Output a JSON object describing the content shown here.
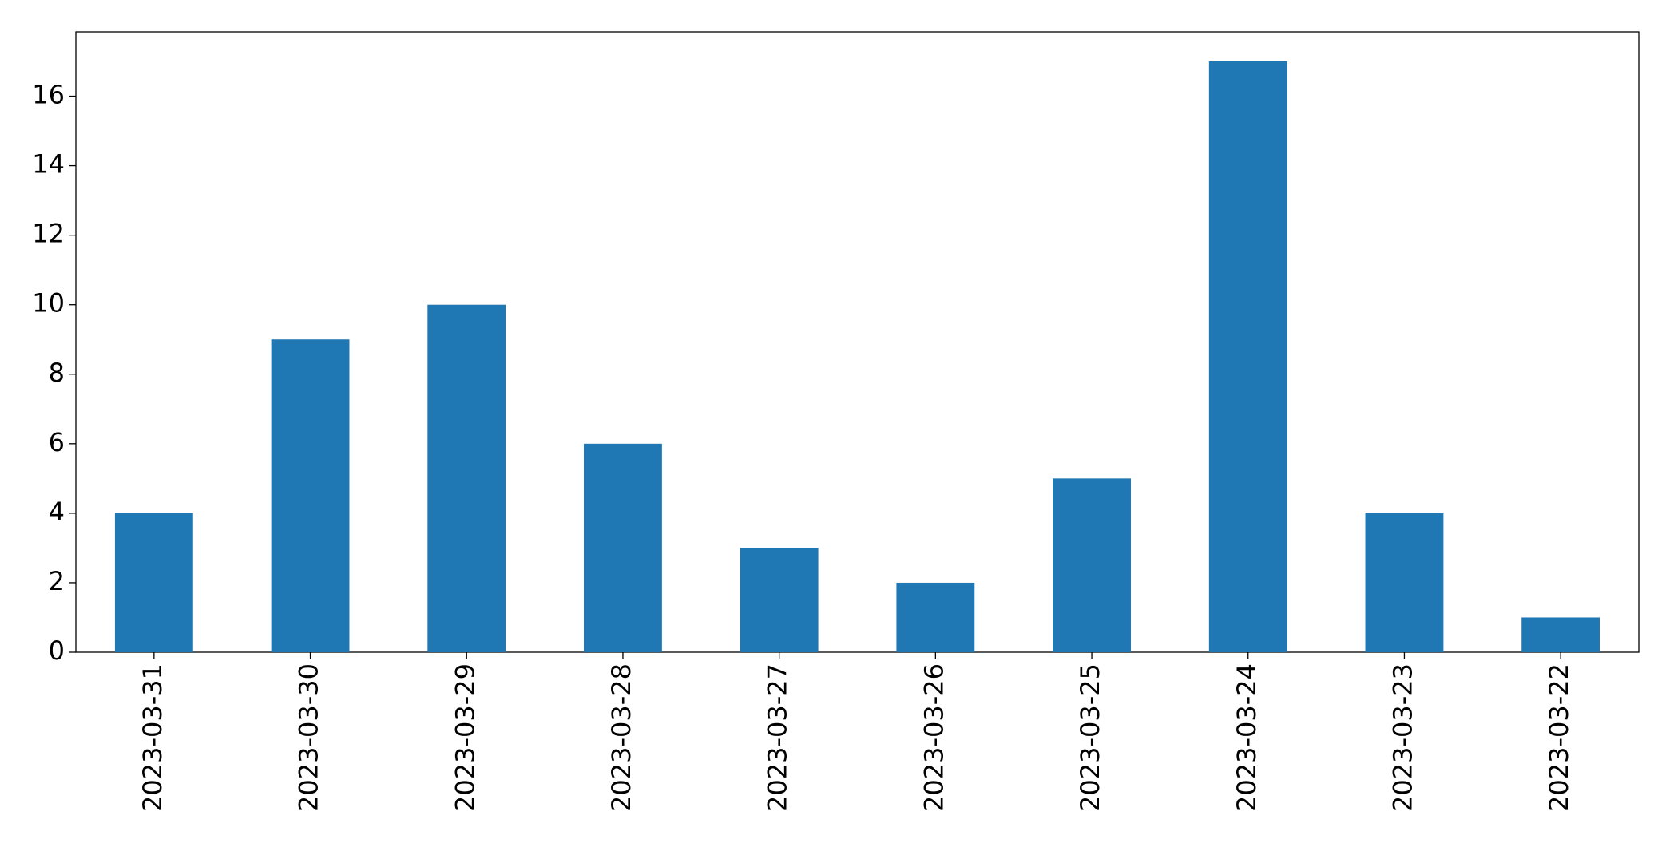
{
  "chart_data": {
    "type": "bar",
    "categories": [
      "2023-03-31",
      "2023-03-30",
      "2023-03-29",
      "2023-03-28",
      "2023-03-27",
      "2023-03-26",
      "2023-03-25",
      "2023-03-24",
      "2023-03-23",
      "2023-03-22"
    ],
    "values": [
      4,
      9,
      10,
      6,
      3,
      2,
      5,
      17,
      4,
      1
    ],
    "color": "#1f77b4",
    "ylim": [
      0,
      17.85
    ],
    "yticks": [
      0,
      2,
      4,
      6,
      8,
      10,
      12,
      14,
      16
    ],
    "grid": false
  }
}
